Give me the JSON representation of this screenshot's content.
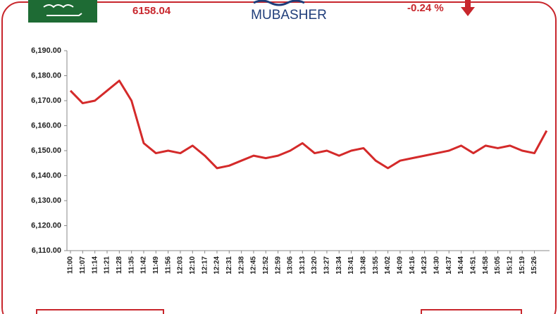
{
  "header": {
    "index_value": "6158.04",
    "brand": "MUBASHER",
    "change": "-0.24 %"
  },
  "chart_data": {
    "type": "line",
    "color": "#d42a2a",
    "categories": [
      "11:00",
      "11:07",
      "11:14",
      "11:21",
      "11:28",
      "11:35",
      "11:42",
      "11:49",
      "11:56",
      "12:03",
      "12:10",
      "12:17",
      "12:24",
      "12:31",
      "12:38",
      "12:45",
      "12:52",
      "12:59",
      "13:06",
      "13:13",
      "13:20",
      "13:27",
      "13:34",
      "13:41",
      "13:48",
      "13:55",
      "14:02",
      "14:09",
      "14:16",
      "14:23",
      "14:30",
      "14:37",
      "14:44",
      "14:51",
      "14:58",
      "15:05",
      "15:12",
      "15:19",
      "15:26",
      null
    ],
    "values": [
      6174,
      6169,
      6170,
      6174,
      6178,
      6170,
      6153,
      6149,
      6150,
      6149,
      6152,
      6148,
      6143,
      6144,
      6146,
      6148,
      6147,
      6148,
      6150,
      6153,
      6149,
      6150,
      6148,
      6150,
      6151,
      6146,
      6143,
      6146,
      6147,
      6148,
      6149,
      6150,
      6152,
      6149,
      6152,
      6151,
      6152,
      6150,
      6149,
      6158
    ],
    "ylim": [
      6110,
      6190
    ],
    "yticks": [
      {
        "value": 6110,
        "label": "6,110.00"
      },
      {
        "value": 6120,
        "label": "6,120.00"
      },
      {
        "value": 6130,
        "label": "6,130.00"
      },
      {
        "value": 6140,
        "label": "6,140.00"
      },
      {
        "value": 6150,
        "label": "6,150.00"
      },
      {
        "value": 6160,
        "label": "6,160.00"
      },
      {
        "value": 6170,
        "label": "6,170.00"
      },
      {
        "value": 6180,
        "label": "6,180.00"
      },
      {
        "value": 6190,
        "label": "6,190.00"
      }
    ]
  }
}
